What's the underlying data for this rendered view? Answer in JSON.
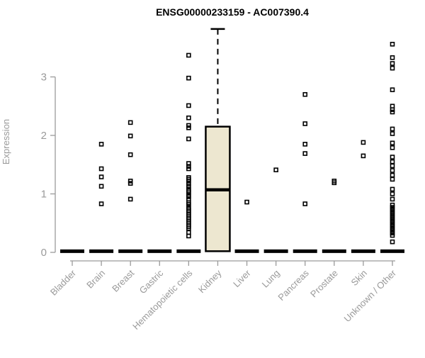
{
  "chart_data": {
    "type": "boxplot",
    "title": "ENSG00000233159 - AC007390.4",
    "xlabel": "",
    "ylabel": "Expression",
    "yticks": [
      0,
      1,
      2,
      3
    ],
    "ylim": [
      0,
      3.9
    ],
    "grid": false,
    "legend": "none",
    "colors": {
      "axis": "#9a9a9a",
      "tick_label": "#9a9a9a",
      "box_fill": "#ede7d0",
      "mark": "#000000",
      "background": "#ffffff"
    },
    "categories": [
      "Bladder",
      "Brain",
      "Breast",
      "Gastric",
      "Hematopoietic cells",
      "Kidney",
      "Liver",
      "Lung",
      "Pancreas",
      "Prostate",
      "Skin",
      "Unknown / Other"
    ],
    "series": [
      {
        "name": "Bladder",
        "zero_bar": true,
        "median": 0.02,
        "points": []
      },
      {
        "name": "Brain",
        "zero_bar": true,
        "median": 0.02,
        "points": [
          1.85,
          1.43,
          1.29,
          1.13,
          0.83
        ]
      },
      {
        "name": "Breast",
        "zero_bar": true,
        "median": 0.02,
        "points": [
          2.22,
          1.99,
          1.67,
          1.22,
          1.18,
          0.91
        ]
      },
      {
        "name": "Gastric",
        "zero_bar": true,
        "median": 0.02,
        "points": []
      },
      {
        "name": "Hematopoietic cells",
        "zero_bar": true,
        "median": 0.02,
        "points": [
          3.37,
          2.98,
          2.51,
          2.3,
          2.17,
          2.13,
          1.94,
          1.52,
          1.47,
          1.43,
          1.28,
          1.25,
          1.22,
          1.17,
          1.13,
          1.08,
          1.05,
          1.02,
          0.98,
          0.95,
          0.91,
          0.85,
          0.82,
          0.77,
          0.74,
          0.71,
          0.68,
          0.65,
          0.62,
          0.59,
          0.56,
          0.53,
          0.5,
          0.47,
          0.44,
          0.41,
          0.34,
          0.28
        ]
      },
      {
        "name": "Kidney",
        "zero_bar": false,
        "box": {
          "q1": 0.02,
          "median": 1.07,
          "q3": 2.15,
          "whisker_high": 3.82,
          "whisker_low": 0.02
        },
        "points": []
      },
      {
        "name": "Liver",
        "zero_bar": true,
        "median": 0.02,
        "points": [
          0.86
        ]
      },
      {
        "name": "Lung",
        "zero_bar": true,
        "median": 0.02,
        "points": [
          1.41
        ]
      },
      {
        "name": "Pancreas",
        "zero_bar": true,
        "median": 0.02,
        "points": [
          2.7,
          2.2,
          1.85,
          1.69,
          0.83
        ]
      },
      {
        "name": "Prostate",
        "zero_bar": true,
        "median": 0.02,
        "points": [
          1.22,
          1.19
        ]
      },
      {
        "name": "Skin",
        "zero_bar": true,
        "median": 0.02,
        "points": [
          1.88,
          1.65
        ]
      },
      {
        "name": "Unknown / Other",
        "zero_bar": true,
        "median": 0.02,
        "points": [
          3.56,
          3.33,
          3.23,
          3.15,
          2.78,
          2.5,
          2.44,
          2.4,
          2.11,
          2.03,
          1.87,
          1.79,
          1.63,
          1.55,
          1.48,
          1.4,
          1.32,
          1.25,
          1.08,
          1.0,
          0.91,
          0.81,
          0.77,
          0.73,
          0.69,
          0.65,
          0.61,
          0.57,
          0.53,
          0.49,
          0.45,
          0.41,
          0.37,
          0.33,
          0.29,
          0.18
        ]
      }
    ]
  }
}
